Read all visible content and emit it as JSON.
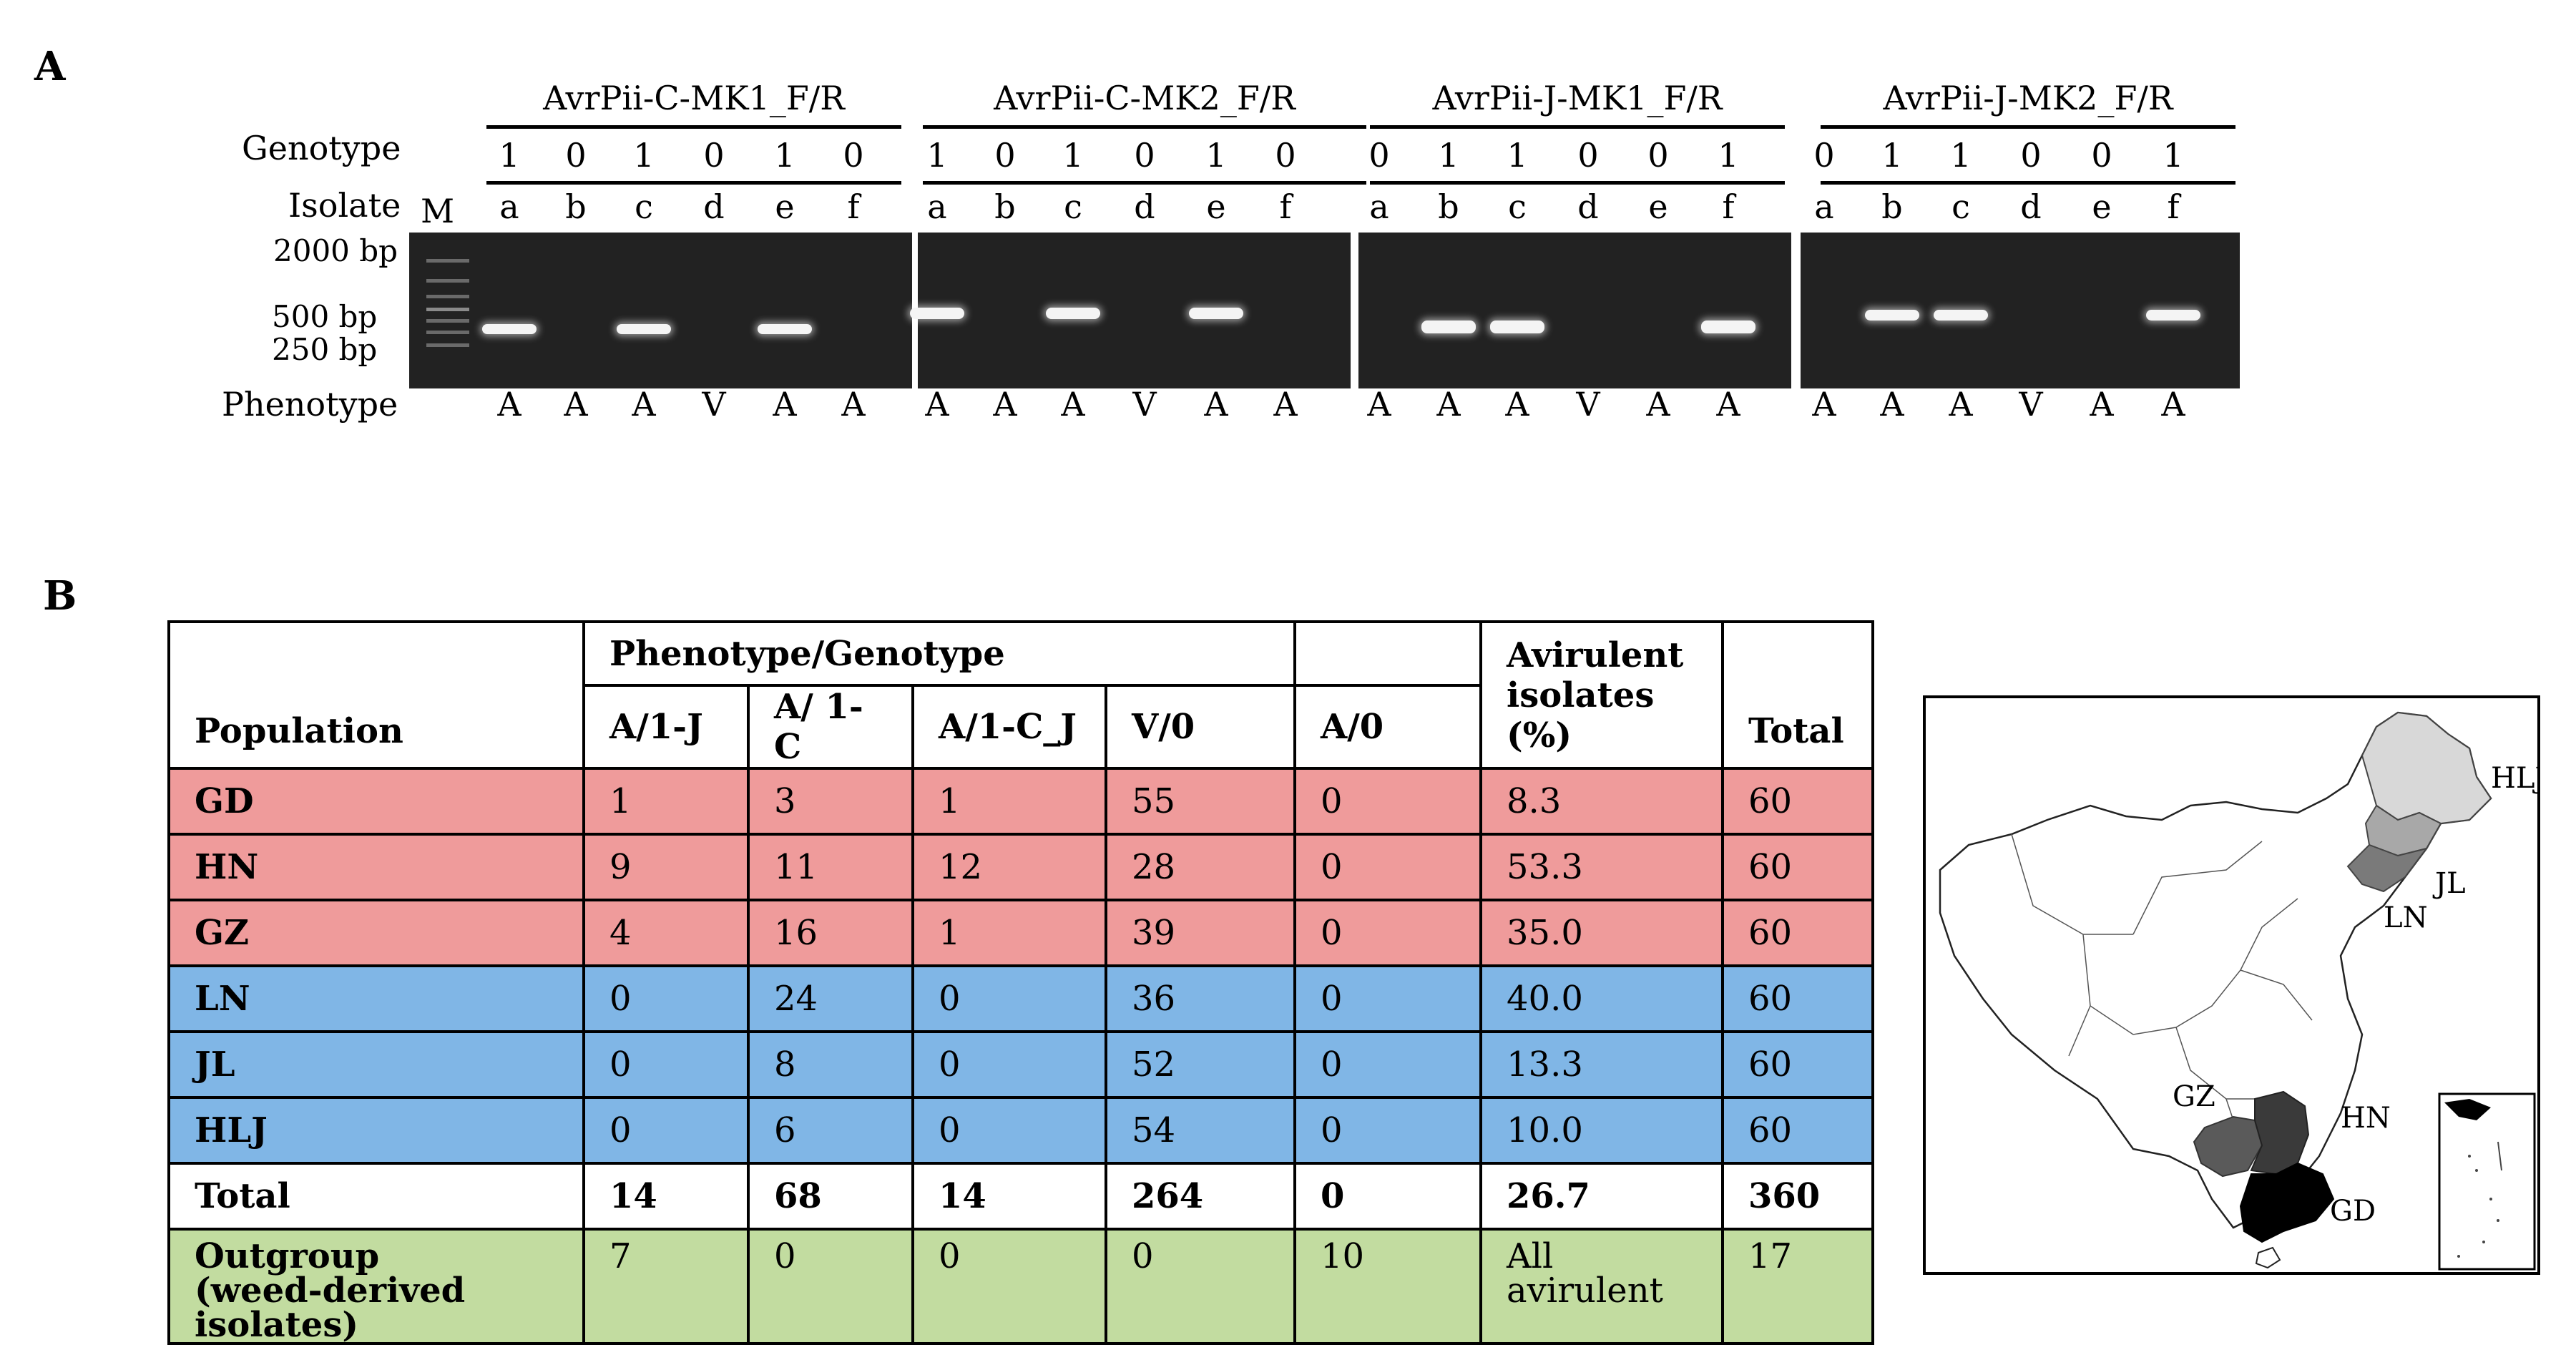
{
  "panels": {
    "a_label": "A",
    "b_label": "B"
  },
  "gel": {
    "markers": [
      "AvrPii-C-MK1_F/R",
      "AvrPii-C-MK2_F/R",
      "AvrPii-J-MK1_F/R",
      "AvrPii-J-MK2_F/R"
    ],
    "row_labels": {
      "genotype": "Genotype",
      "isolate": "Isolate",
      "phenotype": "Phenotype",
      "ladder": "M"
    },
    "size_labels": [
      "2000 bp",
      "500 bp",
      "250 bp"
    ],
    "groups": [
      {
        "genotypes": [
          "1",
          "0",
          "1",
          "0",
          "1",
          "0"
        ],
        "isolates": [
          "a",
          "b",
          "c",
          "d",
          "e",
          "f"
        ],
        "phenotypes": [
          "A",
          "A",
          "A",
          "V",
          "A",
          "A"
        ]
      },
      {
        "genotypes": [
          "1",
          "0",
          "1",
          "0",
          "1",
          "0"
        ],
        "isolates": [
          "a",
          "b",
          "c",
          "d",
          "e",
          "f"
        ],
        "phenotypes": [
          "A",
          "A",
          "A",
          "V",
          "A",
          "A"
        ]
      },
      {
        "genotypes": [
          "0",
          "1",
          "1",
          "0",
          "0",
          "1"
        ],
        "isolates": [
          "a",
          "b",
          "c",
          "d",
          "e",
          "f"
        ],
        "phenotypes": [
          "A",
          "A",
          "A",
          "V",
          "A",
          "A"
        ]
      },
      {
        "genotypes": [
          "0",
          "1",
          "1",
          "0",
          "0",
          "1"
        ],
        "isolates": [
          "a",
          "b",
          "c",
          "d",
          "e",
          "f"
        ],
        "phenotypes": [
          "A",
          "A",
          "A",
          "V",
          "A",
          "A"
        ]
      }
    ]
  },
  "table": {
    "population_header": "Population",
    "group_header": "Phenotype/Genotype",
    "sub_headers": [
      "A/1-J",
      "A/ 1-C",
      "A/1-C_J",
      "V/0",
      "A/0"
    ],
    "avirulent_header_1": "Avirulent",
    "avirulent_header_2": "isolates (%)",
    "total_header": "Total",
    "rows": [
      {
        "pop": "GD",
        "a1j": "1",
        "a1c": "3",
        "a1cj": "1",
        "v0": "55",
        "a0": "0",
        "avir": "8.3",
        "total": "60"
      },
      {
        "pop": "HN",
        "a1j": "9",
        "a1c": "11",
        "a1cj": "12",
        "v0": "28",
        "a0": "0",
        "avir": "53.3",
        "total": "60"
      },
      {
        "pop": "GZ",
        "a1j": "4",
        "a1c": "16",
        "a1cj": "1",
        "v0": "39",
        "a0": "0",
        "avir": "35.0",
        "total": "60"
      },
      {
        "pop": "LN",
        "a1j": "0",
        "a1c": "24",
        "a1cj": "0",
        "v0": "36",
        "a0": "0",
        "avir": "40.0",
        "total": "60"
      },
      {
        "pop": "JL",
        "a1j": "0",
        "a1c": "8",
        "a1cj": "0",
        "v0": "52",
        "a0": "0",
        "avir": "13.3",
        "total": "60"
      },
      {
        "pop": "HLJ",
        "a1j": "0",
        "a1c": "6",
        "a1cj": "0",
        "v0": "54",
        "a0": "0",
        "avir": "10.0",
        "total": "60"
      }
    ],
    "total_row": {
      "pop": "Total",
      "a1j": "14",
      "a1c": "68",
      "a1cj": "14",
      "v0": "264",
      "a0": "0",
      "avir": "26.7",
      "total": "360"
    },
    "outgroup_row": {
      "pop_1": "Outgroup",
      "pop_2": "(weed-derived isolates)",
      "a1j": "7",
      "a1c": "0",
      "a1cj": "0",
      "v0": "0",
      "a0": "10",
      "avir_1": "All",
      "avir_2": "avirulent",
      "total": "17"
    },
    "colors": {
      "south": "#ef9b9b",
      "north": "#80b6e6",
      "outgroup": "#c2dca0"
    }
  },
  "map": {
    "labels": [
      "HLJ",
      "JL",
      "LN",
      "GZ",
      "HN",
      "GD"
    ],
    "shades": {
      "HLJ": "#d8d8d8",
      "JL": "#a8a8a8",
      "LN": "#7a7a7a",
      "GZ": "#5a5a5a",
      "HN": "#3a3a3a",
      "GD": "#000000"
    }
  }
}
